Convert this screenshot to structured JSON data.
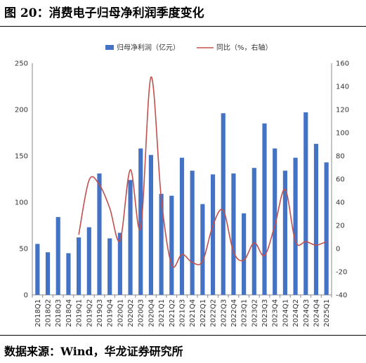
{
  "header": {
    "title": "图 20：消费电子归母净利润季度变化"
  },
  "footer": {
    "source": "数据来源：Wind，华龙证券研究所"
  },
  "chart_data": {
    "type": "bar",
    "categories": [
      "2018Q1",
      "2018Q2",
      "2018Q3",
      "2018Q4",
      "2019Q1",
      "2019Q2",
      "2019Q3",
      "2019Q4",
      "2020Q1",
      "2020Q2",
      "2020Q3",
      "2020Q4",
      "2021Q1",
      "2021Q2",
      "2021Q3",
      "2021Q4",
      "2022Q1",
      "2022Q2",
      "2022Q3",
      "2022Q4",
      "2023Q1",
      "2023Q2",
      "2023Q3",
      "2023Q4",
      "2024Q1",
      "2024Q2",
      "2024Q3",
      "2024Q4",
      "2025Q1"
    ],
    "series": [
      {
        "name": "归母净利润（亿元）",
        "type": "bar",
        "axis": "left",
        "color": "#4472C4",
        "values": [
          55,
          46,
          84,
          45,
          62,
          73,
          131,
          61,
          67,
          124,
          158,
          151,
          109,
          107,
          148,
          134,
          98,
          130,
          196,
          131,
          88,
          137,
          185,
          158,
          134,
          148,
          197,
          163,
          143
        ]
      },
      {
        "name": "同比（%，右轴）",
        "type": "line",
        "axis": "right",
        "color": "#C0504D",
        "values": [
          null,
          null,
          null,
          null,
          12,
          59,
          55,
          35,
          7,
          68,
          18,
          148,
          43,
          -14,
          -5,
          -12,
          -11,
          20,
          33,
          -3,
          -10,
          5,
          -6,
          20,
          51,
          6,
          6,
          3,
          6
        ]
      }
    ],
    "y_left": {
      "ticks": [
        0,
        50,
        100,
        150,
        200,
        250
      ],
      "range": [
        0,
        250
      ]
    },
    "y_right": {
      "ticks": [
        -40,
        -20,
        0,
        20,
        40,
        60,
        80,
        100,
        120,
        140,
        160
      ],
      "range": [
        -40,
        160
      ]
    },
    "legend": {
      "position": "top"
    },
    "grid": false
  }
}
